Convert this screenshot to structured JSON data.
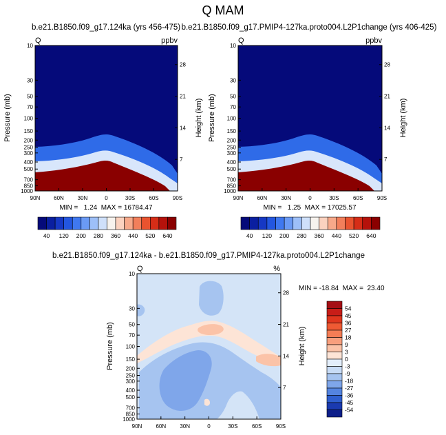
{
  "title": "Q MAM",
  "chart_data": [
    {
      "type": "heatmap",
      "title": "b.e21.B1850.f09_g17.124ka (yrs 456-475)",
      "left_label": "Q",
      "right_label": "ppbv",
      "xlabel": "",
      "ylabel": "Pressure (mb)",
      "ylabel_right": "Height (km)",
      "x_ticks": [
        "90N",
        "60N",
        "30N",
        "0",
        "30S",
        "60S",
        "90S"
      ],
      "y_ticks": [
        10,
        30,
        50,
        70,
        100,
        150,
        200,
        250,
        300,
        400,
        500,
        700,
        850,
        1000
      ],
      "y_ticks_right": [
        28,
        21,
        14,
        7
      ],
      "ylim": [
        1000,
        10
      ],
      "y_scale": "log",
      "stats": "MIN =   1.24  MAX = 16784.47",
      "colorbar_labels": [
        "40",
        "120",
        "200",
        "280",
        "360",
        "440",
        "520",
        "640"
      ],
      "colorbar_colors": [
        "#050a7a",
        "#0a1fa0",
        "#1638c4",
        "#2356e0",
        "#3f78f0",
        "#6a9af5",
        "#9dbff8",
        "#cfe0fa",
        "#f7f3ee",
        "#fbd2bf",
        "#f7a98a",
        "#f27f5b",
        "#e9532f",
        "#d62d17",
        "#b5120b",
        "#8a0000"
      ],
      "colorbar_orientation": "horizontal"
    },
    {
      "type": "heatmap",
      "title": "b.e21.B1850.f09_g17.PMIP4-127ka.proto004.L2P1change (yrs 406-425)",
      "left_label": "Q",
      "right_label": "ppbv",
      "xlabel": "",
      "ylabel": "Pressure (mb)",
      "ylabel_right": "Height (km)",
      "x_ticks": [
        "90N",
        "60N",
        "30N",
        "0",
        "30S",
        "60S",
        "90S"
      ],
      "y_ticks": [
        10,
        30,
        50,
        70,
        100,
        150,
        200,
        250,
        300,
        400,
        500,
        700,
        850,
        1000
      ],
      "y_ticks_right": [
        28,
        21,
        14,
        7
      ],
      "ylim": [
        1000,
        10
      ],
      "y_scale": "log",
      "stats": "MIN =   1.25  MAX = 17025.57",
      "colorbar_labels": [
        "40",
        "120",
        "200",
        "280",
        "360",
        "440",
        "520",
        "640"
      ],
      "colorbar_colors": [
        "#050a7a",
        "#0a1fa0",
        "#1638c4",
        "#2356e0",
        "#3f78f0",
        "#6a9af5",
        "#9dbff8",
        "#cfe0fa",
        "#f7f3ee",
        "#fbd2bf",
        "#f7a98a",
        "#f27f5b",
        "#e9532f",
        "#d62d17",
        "#b5120b",
        "#8a0000"
      ],
      "colorbar_orientation": "horizontal"
    },
    {
      "type": "heatmap",
      "title": "b.e21.B1850.f09_g17.124ka - b.e21.B1850.f09_g17.PMIP4-127ka.proto004.L2P1change",
      "left_label": "Q",
      "right_label": "%",
      "xlabel": "",
      "ylabel": "Pressure (mb)",
      "ylabel_right": "Height (km)",
      "x_ticks": [
        "90N",
        "60N",
        "30N",
        "0",
        "30S",
        "60S",
        "90S"
      ],
      "y_ticks": [
        10,
        30,
        50,
        70,
        100,
        150,
        200,
        250,
        300,
        400,
        500,
        700,
        850,
        1000
      ],
      "y_ticks_right": [
        28,
        21,
        14,
        7
      ],
      "ylim": [
        1000,
        10
      ],
      "y_scale": "log",
      "stats": "MIN = -18.84  MAX =  23.40",
      "colorbar_labels": [
        "54",
        "45",
        "36",
        "27",
        "18",
        "9",
        "3",
        "0",
        "-3",
        "-9",
        "-18",
        "-27",
        "-36",
        "-45",
        "-54"
      ],
      "colorbar_colors": [
        "#a50f15",
        "#c81d18",
        "#e0361e",
        "#ef5a34",
        "#f57d55",
        "#f89f7d",
        "#fbc3a8",
        "#fde4d6",
        "#e3eefb",
        "#c8dcf6",
        "#a6c4f0",
        "#7fa6ea",
        "#5484e0",
        "#2f5fcf",
        "#1a3ab0",
        "#0d1f8a"
      ],
      "colorbar_orientation": "vertical"
    }
  ]
}
